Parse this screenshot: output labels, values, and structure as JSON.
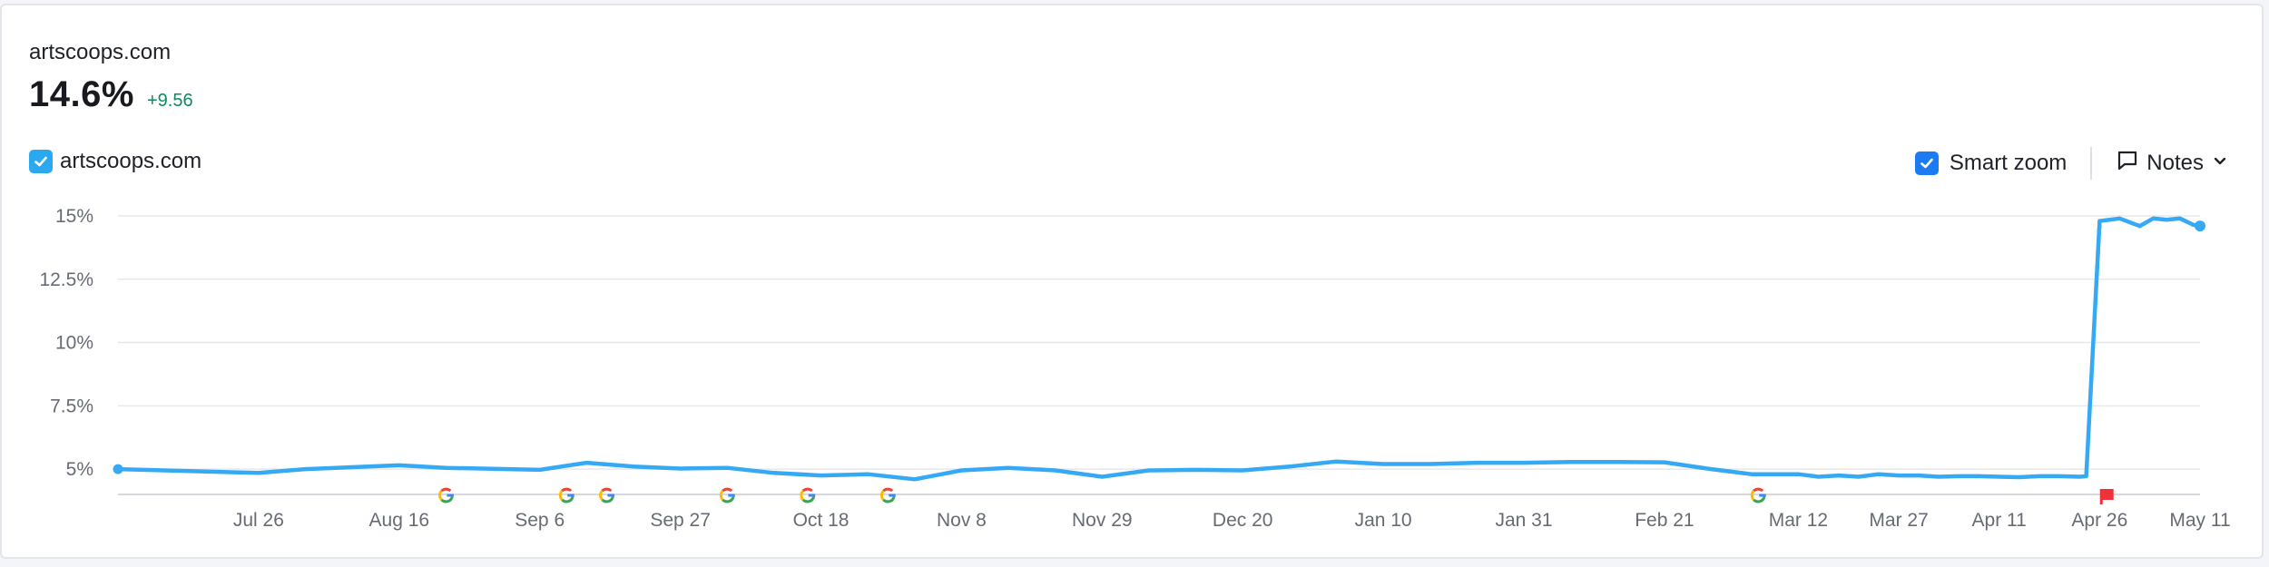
{
  "header": {
    "domain_title": "artscoops.com",
    "metric_value": "14.6%",
    "metric_delta": "+9.56"
  },
  "legend": {
    "series_label": "artscoops.com",
    "checked": true
  },
  "controls": {
    "smart_zoom_label": "Smart zoom",
    "notes_label": "Notes"
  },
  "colors": {
    "series": "#36a9f5",
    "accent": "#0d8a63",
    "checkbox": "#1a7bf2",
    "flag": "#f0313a"
  },
  "chart_data": {
    "type": "line",
    "x_tick_labels": [
      "Jul 26",
      "Aug 16",
      "Sep 6",
      "Sep 27",
      "Oct 18",
      "Nov 8",
      "Nov 29",
      "Dec 20",
      "Jan 10",
      "Jan 31",
      "Feb 21",
      "Mar 12",
      "Mar 27",
      "Apr 11",
      "Apr 26",
      "May 11"
    ],
    "y_tick_labels": [
      "15%",
      "12.5%",
      "10%",
      "7.5%",
      "5%"
    ],
    "y_ticks": [
      15,
      12.5,
      10,
      7.5,
      5
    ],
    "ylim": [
      4,
      15
    ],
    "grid": true,
    "series": [
      {
        "name": "artscoops.com",
        "x": [
          "Jul 5",
          "Jul 26",
          "Aug 2",
          "Aug 16",
          "Aug 23",
          "Sep 6",
          "Sep 13",
          "Sep 20",
          "Sep 27",
          "Oct 4",
          "Oct 11",
          "Oct 18",
          "Oct 25",
          "Nov 1",
          "Nov 8",
          "Nov 15",
          "Nov 22",
          "Nov 29",
          "Dec 6",
          "Dec 13",
          "Dec 20",
          "Dec 27",
          "Jan 3",
          "Jan 10",
          "Jan 17",
          "Jan 24",
          "Jan 31",
          "Feb 7",
          "Feb 14",
          "Feb 21",
          "Feb 28",
          "Mar 5",
          "Mar 12",
          "Mar 15",
          "Mar 18",
          "Mar 21",
          "Mar 24",
          "Mar 27",
          "Mar 30",
          "Apr 2",
          "Apr 5",
          "Apr 8",
          "Apr 11",
          "Apr 14",
          "Apr 17",
          "Apr 20",
          "Apr 23",
          "Apr 24",
          "Apr 26",
          "Apr 29",
          "May 2",
          "May 4",
          "May 6",
          "May 8",
          "May 10",
          "May 11"
        ],
        "values": [
          5.0,
          4.85,
          5.0,
          5.15,
          5.05,
          4.97,
          5.25,
          5.1,
          5.02,
          5.05,
          4.85,
          4.75,
          4.8,
          4.6,
          4.95,
          5.05,
          4.95,
          4.7,
          4.95,
          4.97,
          4.95,
          5.1,
          5.3,
          5.2,
          5.2,
          5.25,
          5.25,
          5.28,
          5.28,
          5.27,
          5.0,
          4.8,
          4.8,
          4.7,
          4.75,
          4.7,
          4.8,
          4.75,
          4.75,
          4.7,
          4.72,
          4.72,
          4.7,
          4.68,
          4.72,
          4.72,
          4.7,
          4.72,
          14.8,
          14.9,
          14.6,
          14.9,
          14.85,
          14.9,
          14.65,
          14.6
        ]
      }
    ],
    "google_update_markers": [
      "Aug 23",
      "Sep 10",
      "Sep 16",
      "Oct 4",
      "Oct 16",
      "Oct 28",
      "Mar 6"
    ],
    "notes_markers": [
      "Apr 27"
    ]
  }
}
